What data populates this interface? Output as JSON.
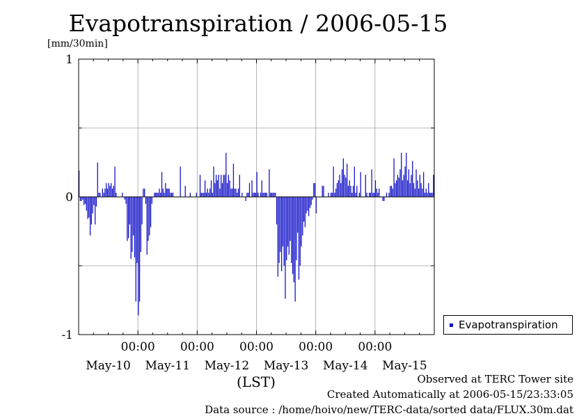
{
  "chart_data": {
    "type": "bar",
    "title": "Evapotranspiration / 2006-05-15",
    "ylabel": "[mm/30min]",
    "xlabel": "(LST)",
    "ylim": [
      -1,
      1
    ],
    "y_ticks": [
      {
        "value": 1,
        "label": "1"
      },
      {
        "value": 0,
        "label": "0"
      },
      {
        "value": -1,
        "label": "-1"
      }
    ],
    "x_range_days": [
      0,
      6
    ],
    "x_tick_labels": [
      {
        "day": 1,
        "time": "00:00"
      },
      {
        "day": 2,
        "time": "00:00"
      },
      {
        "day": 3,
        "time": "00:00"
      },
      {
        "day": 4,
        "time": "00:00"
      },
      {
        "day": 5,
        "time": "00:00"
      }
    ],
    "date_labels": [
      {
        "day": 0.5,
        "label": "May-10"
      },
      {
        "day": 1.5,
        "label": "May-11"
      },
      {
        "day": 2.5,
        "label": "May-12"
      },
      {
        "day": 3.5,
        "label": "May-13"
      },
      {
        "day": 4.5,
        "label": "May-14"
      },
      {
        "day": 5.5,
        "label": "May-15"
      }
    ],
    "grid": true,
    "legend_position": "bottom-right outside",
    "series": [
      {
        "name": "Evapotranspiration",
        "color": "#1010c8",
        "interval_hours": 0.5,
        "values": [
          0.19,
          -0.03,
          -0.03,
          -0.02,
          -0.06,
          -0.05,
          -0.1,
          -0.16,
          -0.15,
          -0.28,
          -0.2,
          -0.12,
          -0.06,
          -0.2,
          -0.07,
          0.25,
          0.03,
          0.03,
          0.0,
          0.06,
          0.03,
          0.06,
          0.1,
          0.06,
          0.1,
          0.08,
          0.1,
          0.06,
          0.08,
          0.22,
          0.03,
          0.0,
          0.0,
          0.0,
          0.0,
          0.03,
          0.0,
          -0.02,
          -0.05,
          -0.32,
          -0.3,
          -0.2,
          -0.45,
          -0.4,
          -0.28,
          -0.44,
          -0.76,
          -0.48,
          -0.86,
          -0.76,
          -0.4,
          -0.2,
          0.06,
          0.06,
          -0.05,
          -0.42,
          -0.32,
          -0.28,
          -0.22,
          -0.05,
          0.0,
          0.03,
          0.03,
          0.03,
          0.03,
          0.06,
          0.03,
          0.18,
          0.06,
          0.03,
          0.1,
          0.06,
          0.06,
          0.06,
          0.03,
          0.03,
          0.03,
          0.0,
          0.0,
          0.0,
          0.0,
          0.0,
          0.22,
          0.0,
          0.0,
          0.0,
          0.08,
          0.0,
          0.0,
          0.0,
          0.03,
          0.0,
          0.0,
          0.0,
          0.0,
          0.03,
          0.0,
          0.0,
          0.16,
          0.03,
          0.03,
          0.03,
          0.12,
          0.03,
          0.06,
          0.03,
          0.06,
          0.12,
          0.03,
          0.22,
          0.1,
          0.16,
          0.12,
          0.16,
          0.06,
          0.16,
          0.1,
          0.16,
          0.16,
          0.32,
          0.1,
          0.16,
          0.12,
          0.06,
          0.06,
          0.24,
          0.06,
          0.06,
          0.03,
          0.06,
          0.16,
          0.0,
          0.03,
          0.0,
          0.0,
          -0.03,
          0.03,
          0.03,
          0.1,
          0.0,
          0.12,
          0.03,
          0.03,
          0.03,
          0.18,
          0.03,
          0.0,
          0.03,
          0.12,
          0.03,
          0.03,
          0.03,
          0.03,
          0.0,
          0.2,
          0.03,
          0.03,
          0.03,
          0.03,
          0.03,
          -0.2,
          -0.58,
          -0.48,
          -0.4,
          -0.54,
          -0.36,
          -0.5,
          -0.74,
          -0.46,
          -0.36,
          -0.42,
          -0.32,
          -0.48,
          -0.56,
          -0.62,
          -0.76,
          -0.46,
          -0.26,
          -0.6,
          -0.5,
          -0.36,
          -0.28,
          -0.18,
          -0.22,
          -0.12,
          -0.1,
          -0.14,
          -0.08,
          -0.06,
          -0.02,
          0.1,
          0.1,
          -0.12,
          0.0,
          0.0,
          0.0,
          0.0,
          0.08,
          0.08,
          0.0,
          0.0,
          0.0,
          0.03,
          0.0,
          0.03,
          0.03,
          0.22,
          0.03,
          0.06,
          0.1,
          0.12,
          0.16,
          0.1,
          0.2,
          0.28,
          0.16,
          0.14,
          0.24,
          0.08,
          0.12,
          0.08,
          0.03,
          0.08,
          0.22,
          0.03,
          0.08,
          0.0,
          0.03,
          0.18,
          0.0,
          0.0,
          0.0,
          0.16,
          0.03,
          0.0,
          0.03,
          0.03,
          0.2,
          0.03,
          0.03,
          0.12,
          0.06,
          0.03,
          0.06,
          0.0,
          0.0,
          -0.03,
          -0.03,
          0.0,
          0.03,
          0.0,
          0.03,
          0.08,
          0.08,
          0.06,
          0.28,
          0.1,
          0.12,
          0.16,
          0.14,
          0.2,
          0.32,
          0.12,
          0.16,
          0.22,
          0.32,
          0.12,
          0.2,
          0.1,
          0.16,
          0.26,
          0.1,
          0.06,
          0.2,
          0.12,
          0.06,
          0.16,
          0.1,
          0.06,
          0.18,
          0.03,
          0.06,
          0.03,
          0.1,
          0.03,
          0.03,
          0.03,
          0.16
        ]
      }
    ]
  },
  "notes": {
    "observed": "Observed at TERC Tower site",
    "created": "Created Automatically at 2006-05-15/23:33:05",
    "source": "Data source : /home/hoivo/new/TERC-data/sorted  data/FLUX.30m.dat"
  }
}
